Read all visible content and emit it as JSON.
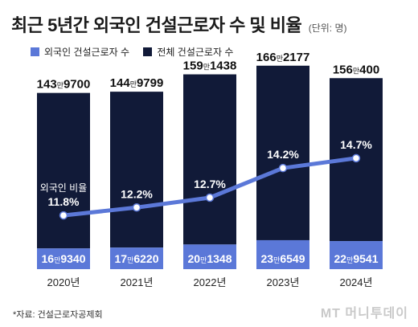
{
  "chart_data": {
    "type": "bar",
    "title": "최근 5년간 외국인 건설근로자 수 및 비율",
    "unit_note": "(단위: 명)",
    "categories": [
      "2020년",
      "2021년",
      "2022년",
      "2023년",
      "2024년"
    ],
    "series": [
      {
        "name": "외국인 건설근로자 수",
        "color": "#5b78d8",
        "values": [
          169340,
          176220,
          201348,
          236549,
          229541
        ],
        "labels": [
          {
            "big": "16",
            "man": "만",
            "rest": "9340"
          },
          {
            "big": "17",
            "man": "만",
            "rest": "6220"
          },
          {
            "big": "20",
            "man": "만",
            "rest": "1348"
          },
          {
            "big": "23",
            "man": "만",
            "rest": "6549"
          },
          {
            "big": "22",
            "man": "만",
            "rest": "9541"
          }
        ]
      },
      {
        "name": "전체 건설근로자 수",
        "color": "#111a38",
        "values": [
          1439700,
          1449799,
          1591438,
          1662177,
          1560400
        ],
        "labels": [
          {
            "big": "143",
            "man": "만",
            "rest": "9700"
          },
          {
            "big": "144",
            "man": "만",
            "rest": "9799"
          },
          {
            "big": "159",
            "man": "만",
            "rest": "1438"
          },
          {
            "big": "166",
            "man": "만",
            "rest": "2177"
          },
          {
            "big": "156",
            "man": "만",
            "rest": "400"
          }
        ]
      }
    ],
    "ratio": {
      "name": "외국인 비율",
      "color": "#5b78d8",
      "values": [
        11.8,
        12.2,
        12.7,
        14.2,
        14.7
      ],
      "labels": [
        "11.8%",
        "12.2%",
        "12.7%",
        "14.2%",
        "14.7%"
      ]
    },
    "ylim": [
      0,
      1700000
    ],
    "ratio_lim": [
      10.5,
      16
    ],
    "grid": false,
    "legend_position": "top-left",
    "source": "*자료: 건설근로자공제회"
  },
  "watermark": "MT 머니투데이"
}
